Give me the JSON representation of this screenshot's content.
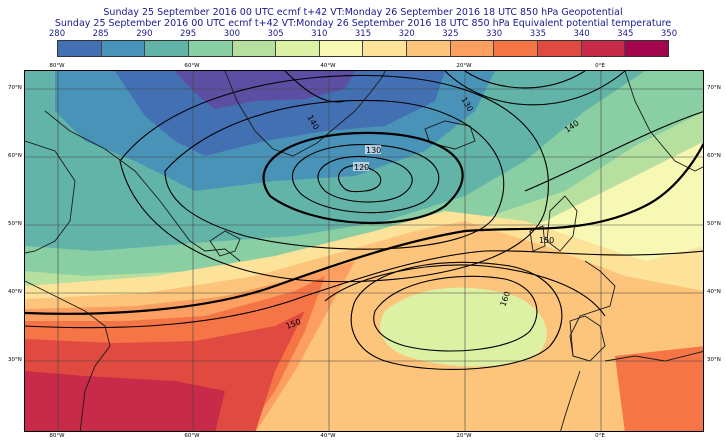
{
  "header": {
    "line1": "Sunday 25 September 2016 00 UTC ecmf t+42 VT:Monday 26 September 2016 18 UTC 850 hPa  Geopotential",
    "line2": "Sunday 25 September 2016 00 UTC ecmf t+42 VT:Monday 26 September 2016 18 UTC 850 hPa  Equivalent potential temperature"
  },
  "colorbar": {
    "ticks": [
      "280",
      "285",
      "290",
      "295",
      "300",
      "305",
      "310",
      "315",
      "320",
      "325",
      "330",
      "335",
      "340",
      "345",
      "350"
    ],
    "colors": [
      "#5c4ea2",
      "#4270b3",
      "#4a93b8",
      "#63b4a8",
      "#89cfa3",
      "#b6e0a0",
      "#ddf1a5",
      "#f8f8b5",
      "#fde39a",
      "#fdc47c",
      "#fc9f61",
      "#f57547",
      "#e14a40",
      "#c82b4a",
      "#a3064d"
    ]
  },
  "map": {
    "lon_labels": [
      "80°W",
      "60°W",
      "40°W",
      "20°W",
      "0°E"
    ],
    "lat_labels": [
      "70°N",
      "60°N",
      "50°N",
      "40°N",
      "30°N"
    ],
    "contour_labels": [
      "120",
      "130",
      "130",
      "140",
      "140",
      "150",
      "150",
      "160"
    ]
  }
}
